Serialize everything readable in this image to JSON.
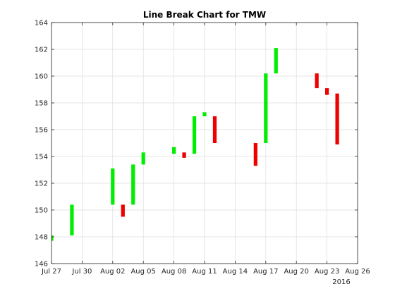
{
  "chart_data": {
    "type": "bar",
    "subtype": "line-break",
    "title": "Line Break Chart for TMW",
    "xlabel": "",
    "ylabel": "",
    "year_label": "2016",
    "xlim": [
      "2016-07-27",
      "2016-08-26"
    ],
    "ylim": [
      146,
      164
    ],
    "xticks": [
      "2016-07-27",
      "2016-07-30",
      "2016-08-02",
      "2016-08-05",
      "2016-08-08",
      "2016-08-11",
      "2016-08-14",
      "2016-08-17",
      "2016-08-20",
      "2016-08-23",
      "2016-08-26"
    ],
    "xtick_labels": [
      "Jul 27",
      "Jul 30",
      "Aug 02",
      "Aug 05",
      "Aug 08",
      "Aug 11",
      "Aug 14",
      "Aug 17",
      "Aug 20",
      "Aug 23",
      "Aug 26"
    ],
    "yticks": [
      146,
      148,
      150,
      152,
      154,
      156,
      158,
      160,
      162,
      164
    ],
    "grid": true,
    "colors": {
      "up": "#00ee00",
      "down": "#ee0000"
    },
    "series": [
      {
        "values": [
          {
            "x": "2016-07-27",
            "low": 147.7,
            "high": 148.1,
            "direction": "up"
          },
          {
            "x": "2016-07-29",
            "low": 148.1,
            "high": 150.4,
            "direction": "up"
          },
          {
            "x": "2016-08-02",
            "low": 150.4,
            "high": 153.1,
            "direction": "up"
          },
          {
            "x": "2016-08-03",
            "low": 149.5,
            "high": 150.4,
            "direction": "down"
          },
          {
            "x": "2016-08-04",
            "low": 150.4,
            "high": 153.4,
            "direction": "up"
          },
          {
            "x": "2016-08-05",
            "low": 153.4,
            "high": 154.3,
            "direction": "up"
          },
          {
            "x": "2016-08-08",
            "low": 154.2,
            "high": 154.7,
            "direction": "up"
          },
          {
            "x": "2016-08-09",
            "low": 153.9,
            "high": 154.3,
            "direction": "down"
          },
          {
            "x": "2016-08-10",
            "low": 154.2,
            "high": 157.0,
            "direction": "up"
          },
          {
            "x": "2016-08-11",
            "low": 157.0,
            "high": 157.3,
            "direction": "up"
          },
          {
            "x": "2016-08-12",
            "low": 155.0,
            "high": 157.0,
            "direction": "down"
          },
          {
            "x": "2016-08-16",
            "low": 153.3,
            "high": 155.0,
            "direction": "down"
          },
          {
            "x": "2016-08-17",
            "low": 155.0,
            "high": 160.2,
            "direction": "up"
          },
          {
            "x": "2016-08-18",
            "low": 160.2,
            "high": 162.1,
            "direction": "up"
          },
          {
            "x": "2016-08-22",
            "low": 159.1,
            "high": 160.2,
            "direction": "down"
          },
          {
            "x": "2016-08-23",
            "low": 158.6,
            "high": 159.1,
            "direction": "down"
          },
          {
            "x": "2016-08-24",
            "low": 154.9,
            "high": 158.7,
            "direction": "down"
          }
        ]
      }
    ]
  }
}
